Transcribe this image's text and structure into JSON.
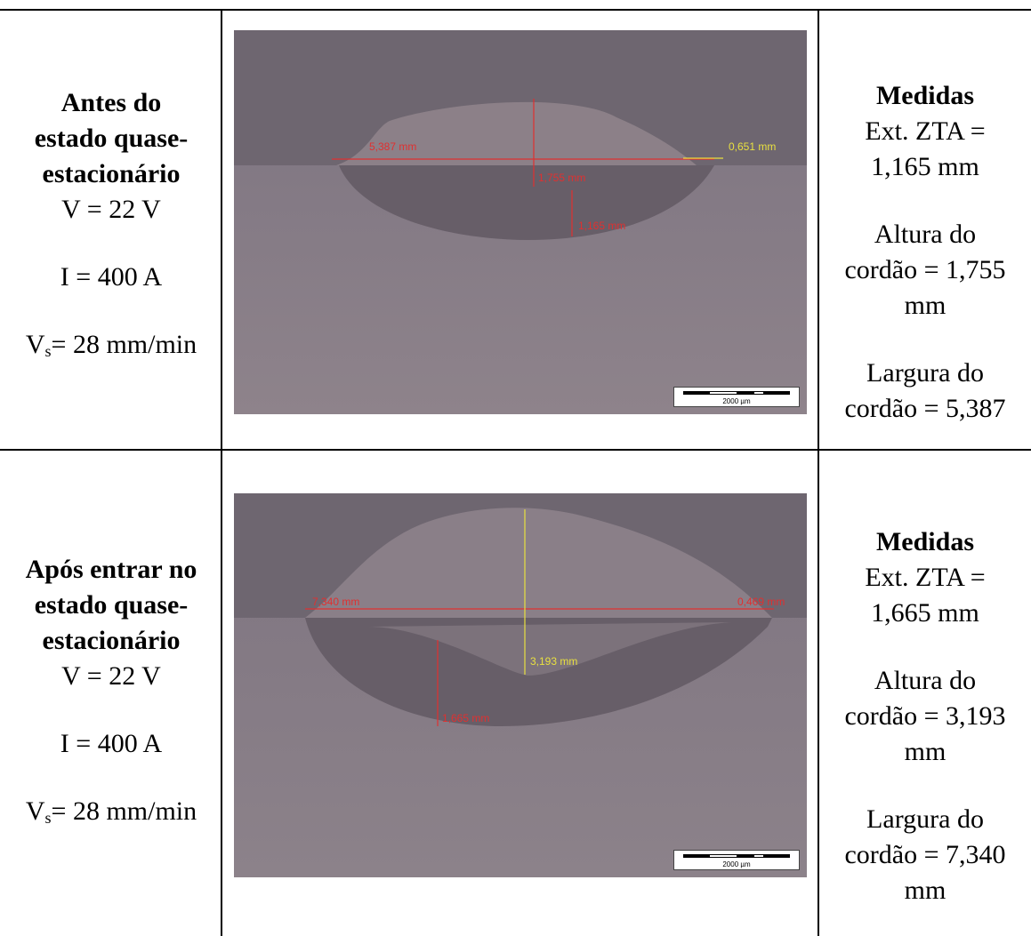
{
  "rows": [
    {
      "condition": {
        "title": "Antes do estado quase-estacionário",
        "title_lines": [
          "Antes do",
          "estado quase-",
          "estacionário"
        ],
        "voltage": "V = 22 V",
        "current": "I = 400 A",
        "speed_prefix": "V",
        "speed_sub": "s",
        "speed_rest": "= 28 mm/min"
      },
      "image": {
        "labels": [
          "5,387 mm",
          "0,651 mm",
          "1,755 mm",
          "1,165 mm"
        ],
        "scale": "2000 µm"
      },
      "measures": {
        "title": "Medidas",
        "zta": [
          "Ext. ZTA =",
          "1,165 mm"
        ],
        "altura": [
          "Altura do",
          "cordão = 1,755",
          "mm"
        ],
        "largura": [
          "Largura do",
          "cordão = 5,387"
        ]
      }
    },
    {
      "condition": {
        "title": "Após entrar no estado quase-estacionário",
        "title_lines": [
          "Após entrar no",
          "estado quase-",
          "estacionário"
        ],
        "voltage": "V = 22 V",
        "current": "I = 400 A",
        "speed_prefix": "V",
        "speed_sub": "s",
        "speed_rest": "= 28 mm/min"
      },
      "image": {
        "labels": [
          "7,340 mm",
          "0,469 mm",
          "3,193 mm",
          "1,665 mm"
        ],
        "scale": "2000 µm"
      },
      "measures": {
        "title": "Medidas",
        "zta": [
          "Ext. ZTA =",
          "1,665 mm"
        ],
        "altura": [
          "Altura do",
          "cordão = 3,193",
          "mm"
        ],
        "largura": [
          "Largura do",
          "cordão = 7,340",
          "mm"
        ]
      }
    }
  ],
  "colors": {
    "measure_red": "#e03030",
    "measure_yellow": "#e8e040",
    "upper_bg": "#6e6670",
    "metal": "#8a8088"
  }
}
